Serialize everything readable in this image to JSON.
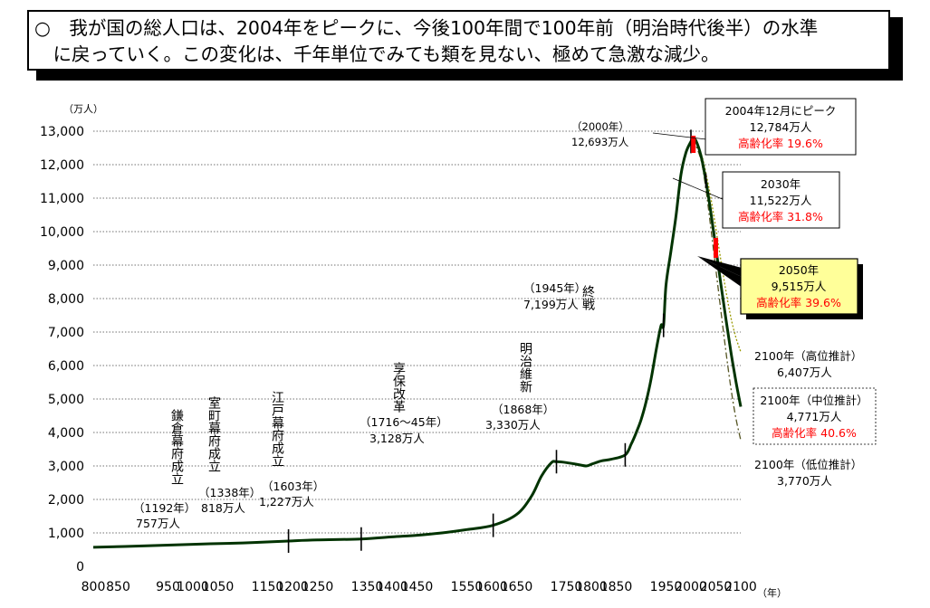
{
  "headline": {
    "line1": "○　我が国の総人口は、2004年をピークに、今後100年間で100年前（明治時代後半）の水準",
    "line2": "　に戻っていく。この変化は、千年単位でみても類を見ない、極めて急激な減少。"
  },
  "chart_data": {
    "type": "line",
    "ylabel": "（万人）",
    "xlabel": "（年）",
    "xlim": [
      800,
      2100
    ],
    "ylim": [
      0,
      13000
    ],
    "x_ticks": [
      800,
      850,
      900,
      950,
      1000,
      1050,
      1100,
      1150,
      1200,
      1250,
      1300,
      1350,
      1400,
      1450,
      1500,
      1550,
      1600,
      1650,
      1700,
      1750,
      1800,
      1850,
      1900,
      1950,
      2000,
      2050,
      2100
    ],
    "x_tick_labels": [
      "800",
      "",
      "",
      "",
      "1000",
      "",
      "",
      "",
      "1200",
      "",
      "",
      "",
      "1400",
      "",
      "",
      "",
      "1600",
      "",
      "",
      "",
      "1800",
      "",
      "",
      "",
      "2000",
      "",
      "2100"
    ],
    "y_ticks": [
      0,
      1000,
      2000,
      3000,
      4000,
      5000,
      6000,
      7000,
      8000,
      9000,
      10000,
      11000,
      12000,
      13000
    ],
    "y_tick_labels": [
      "0",
      "1,000",
      "2,000",
      "3,000",
      "4,000",
      "5,000",
      "6,000",
      "7,000",
      "8,000",
      "9,000",
      "10,000",
      "11,000",
      "12,000",
      "13,000"
    ],
    "grid": "horizontal-dotted",
    "colors": {
      "main": "#003300",
      "high": "#999900",
      "low": "#555522",
      "accent": "#ff0000",
      "callout_fill": "#ffff99"
    },
    "series": [
      {
        "key": "history",
        "x": [
          800,
          900,
          1000,
          1100,
          1192,
          1250,
          1338,
          1400,
          1450,
          1500,
          1550,
          1603,
          1650,
          1680,
          1700,
          1720,
          1730,
          1750,
          1770,
          1790,
          1800,
          1820,
          1840,
          1868,
          1880,
          1890,
          1900,
          1910,
          1920,
          1930,
          1940,
          1945,
          1950,
          1960,
          1970,
          1980,
          1990,
          2000,
          2004
        ],
        "y": [
          570,
          610,
          660,
          700,
          757,
          790,
          818,
          880,
          930,
          1000,
          1100,
          1227,
          1550,
          2100,
          2700,
          3100,
          3128,
          3100,
          3050,
          3000,
          3050,
          3150,
          3200,
          3330,
          3650,
          3990,
          4385,
          4918,
          5596,
          6445,
          7193,
          7199,
          8412,
          9430,
          10467,
          11706,
          12361,
          12693,
          12784
        ]
      },
      {
        "key": "medium",
        "x": [
          2004,
          2010,
          2020,
          2030,
          2040,
          2050,
          2060,
          2070,
          2080,
          2090,
          2100
        ],
        "y": [
          12784,
          12718,
          12274,
          11522,
          10570,
          9515,
          8440,
          7410,
          6430,
          5550,
          4771
        ]
      },
      {
        "key": "high",
        "x": [
          2004,
          2020,
          2030,
          2040,
          2050,
          2060,
          2070,
          2080,
          2090,
          2100
        ],
        "y": [
          12784,
          12350,
          11750,
          11000,
          10100,
          9150,
          8250,
          7450,
          6850,
          6407
        ]
      },
      {
        "key": "low",
        "x": [
          2004,
          2020,
          2030,
          2040,
          2050,
          2060,
          2070,
          2080,
          2090,
          2100
        ],
        "y": [
          12784,
          12150,
          11280,
          10100,
          8880,
          7650,
          6450,
          5350,
          4450,
          3770
        ]
      }
    ],
    "events": [
      {
        "x": 1192,
        "y": 757,
        "name": "鎌倉幕府成立",
        "year": "（1192年）",
        "pop": "757万人"
      },
      {
        "x": 1338,
        "y": 818,
        "name": "室町幕府成立",
        "year": "（1338年）",
        "pop": "818万人"
      },
      {
        "x": 1603,
        "y": 1227,
        "name": "江戸幕府成立",
        "year": "（1603年）",
        "pop": "1,227万人"
      },
      {
        "x": 1730,
        "y": 3128,
        "name": "享保改革",
        "year": "（1716～45年）",
        "pop": "3,128万人"
      },
      {
        "x": 1868,
        "y": 3330,
        "name": "明治維新",
        "year": "（1868年）",
        "pop": "3,330万人"
      },
      {
        "x": 1945,
        "y": 7199,
        "name": "終戦",
        "year": "（1945年）",
        "pop": "7,199万人"
      },
      {
        "x": 2000,
        "y": 12693,
        "name": "",
        "year": "（2000年）",
        "pop": "12,693万人"
      }
    ],
    "callouts": {
      "peak": {
        "x": 2004,
        "y": 12784,
        "line1": "2004年12月にピーク",
        "line2": "12,784万人",
        "line3": "高齢化率 19.6%"
      },
      "y2030": {
        "x": 2030,
        "y": 11522,
        "line1": "2030年",
        "line2": "11,522万人",
        "line3": "高齢化率 31.8%"
      },
      "y2050": {
        "x": 2050,
        "y": 9515,
        "line1": "2050年",
        "line2": "9,515万人",
        "line3": "高齢化率 39.6%"
      }
    },
    "projections_2100": {
      "high": {
        "line1": "2100年（高位推計）",
        "line2": "6,407万人"
      },
      "medium": {
        "line1": "2100年（中位推計）",
        "line2": "4,771万人",
        "line3": "高齢化率 40.6%"
      },
      "low": {
        "line1": "2100年（低位推計）",
        "line2": "3,770万人"
      }
    }
  }
}
